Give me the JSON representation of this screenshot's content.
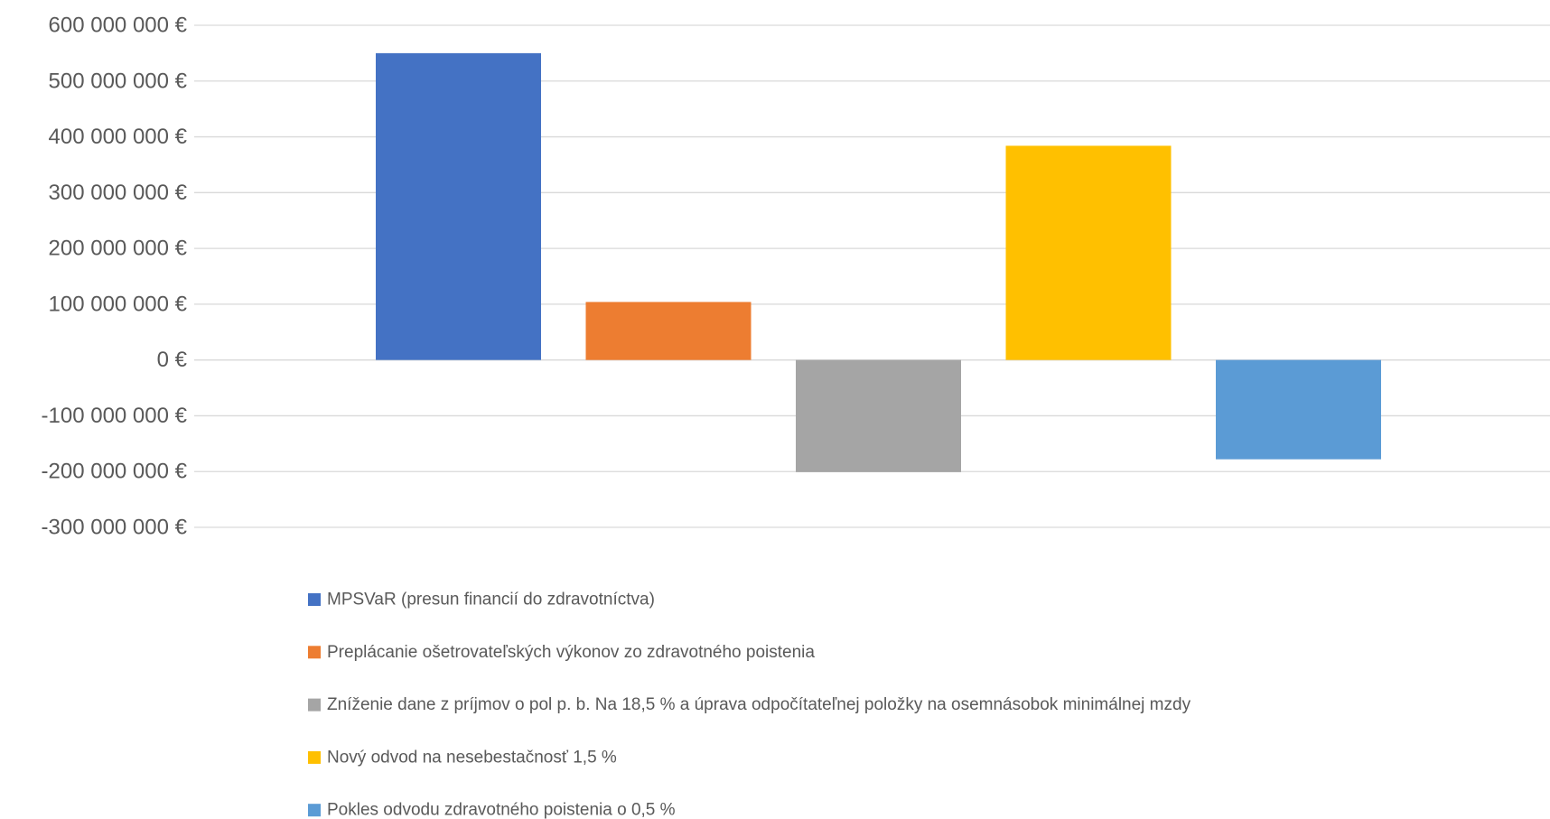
{
  "chart_data": {
    "type": "bar",
    "title": "",
    "xlabel": "",
    "ylabel": "",
    "ylim": [
      -300000000,
      600000000
    ],
    "yticks": [
      600000000,
      500000000,
      400000000,
      300000000,
      200000000,
      100000000,
      0,
      -100000000,
      -200000000,
      -300000000
    ],
    "ytick_labels": [
      "600 000 000 €",
      "500 000 000 €",
      "400 000 000 €",
      "300 000 000 €",
      "200 000 000 €",
      "100 000 000 €",
      "0 €",
      "-100 000 000 €",
      "-200 000 000 €",
      "-300 000 000 €"
    ],
    "grid": true,
    "legend_position": "bottom",
    "series": [
      {
        "name": "MPSVaR (presun financií do zdravotníctva)",
        "value": 550000000,
        "color": "#4472C4"
      },
      {
        "name": "Preplácanie ošetrovateľských výkonov zo zdravotného poistenia",
        "value": 104000000,
        "color": "#ED7D31"
      },
      {
        "name": "Zníženie dane z príjmov o pol p. b. Na 18,5 % a úprava odpočítateľnej položky na osemnásobok minimálnej mzdy",
        "value": -201000000,
        "color": "#A5A5A5"
      },
      {
        "name": "Nový odvod na nesebestačnosť 1,5 %",
        "value": 384000000,
        "color": "#FFC000"
      },
      {
        "name": "Pokles odvodu zdravotného poistenia o 0,5 %",
        "value": -178000000,
        "color": "#5B9BD5"
      }
    ]
  }
}
